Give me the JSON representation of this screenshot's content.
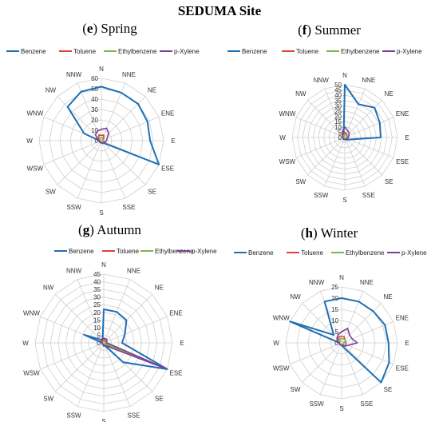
{
  "figure_title": "SEDUMA Site",
  "colors": {
    "benzene": "#1f6fb5",
    "toluene": "#e0413a",
    "ethylbenzene": "#7ab648",
    "p_xylene": "#7b3f99",
    "grid": "#cfcfcf",
    "axis_text": "#333333"
  },
  "chart_data": [
    {
      "type": "radar",
      "letter": "e",
      "season": "Spring",
      "directions": [
        "N",
        "NNE",
        "NE",
        "ENE",
        "E",
        "ESE",
        "SE",
        "SSE",
        "S",
        "SSW",
        "SW",
        "WSW",
        "W",
        "WNW",
        "NW",
        "NNW"
      ],
      "rticks": [
        "0",
        "10",
        "20",
        "30",
        "40",
        "50",
        "60"
      ],
      "rmax": 60,
      "legend_position": "top",
      "series": [
        {
          "name": "Benzene",
          "color": "#1f6fb5",
          "values": [
            52,
            50,
            50,
            48,
            47,
            60,
            3,
            2,
            2,
            2,
            2,
            2,
            2,
            18,
            46,
            51
          ]
        },
        {
          "name": "Toluene",
          "color": "#e0413a",
          "values": [
            5,
            6,
            3,
            2,
            2,
            3,
            2,
            2,
            2,
            2,
            1,
            1,
            1,
            2,
            4,
            6
          ]
        },
        {
          "name": "Ethylbenzene",
          "color": "#7ab648",
          "values": [
            3,
            3,
            2,
            2,
            2,
            2,
            2,
            1,
            1,
            1,
            1,
            1,
            1,
            2,
            3,
            3
          ]
        },
        {
          "name": "p-Xylene",
          "color": "#7b3f99",
          "values": [
            11,
            13,
            10,
            6,
            5,
            4,
            3,
            3,
            2,
            2,
            2,
            2,
            2,
            4,
            8,
            10
          ]
        }
      ]
    },
    {
      "type": "radar",
      "letter": "f",
      "season": "Summer",
      "directions": [
        "N",
        "NNE",
        "NE",
        "ENE",
        "E",
        "ESE",
        "SE",
        "SSE",
        "S",
        "SSW",
        "SW",
        "WSW",
        "W",
        "WNW",
        "NW",
        "NNW"
      ],
      "rticks": [
        "0",
        "5",
        "10",
        "15",
        "20",
        "25",
        "30",
        "35",
        "40",
        "45",
        "50"
      ],
      "rmax": 50,
      "legend_position": "top",
      "series": [
        {
          "name": "Benzene",
          "color": "#1f6fb5",
          "values": [
            50,
            34,
            40,
            36,
            34,
            5,
            3,
            2,
            2,
            2,
            2,
            2,
            2,
            2,
            3,
            3
          ]
        },
        {
          "name": "Toluene",
          "color": "#e0413a",
          "values": [
            5,
            4,
            3,
            2,
            2,
            2,
            2,
            2,
            2,
            1,
            1,
            1,
            1,
            1,
            2,
            3
          ]
        },
        {
          "name": "Ethylbenzene",
          "color": "#7ab648",
          "values": [
            3,
            3,
            2,
            2,
            2,
            2,
            1,
            1,
            1,
            1,
            1,
            1,
            1,
            1,
            2,
            2
          ]
        },
        {
          "name": "p-Xylene",
          "color": "#7b3f99",
          "values": [
            10,
            7,
            6,
            4,
            3,
            3,
            2,
            2,
            2,
            2,
            2,
            2,
            2,
            2,
            3,
            6
          ]
        }
      ]
    },
    {
      "type": "radar",
      "letter": "g",
      "season": "Autumn",
      "directions": [
        "N",
        "NNE",
        "NE",
        "ENE",
        "E",
        "ESE",
        "SE",
        "SSE",
        "S",
        "SSW",
        "SW",
        "WSW",
        "W",
        "WNW",
        "NW",
        "NNW"
      ],
      "rticks": [
        "0",
        "5",
        "10",
        "15",
        "20",
        "25",
        "30",
        "35",
        "40",
        "45"
      ],
      "rmax": 45,
      "legend_position": "top",
      "series": [
        {
          "name": "Benzene",
          "color": "#1f6fb5",
          "values": [
            22,
            22,
            21,
            15,
            12,
            45,
            18,
            2,
            2,
            1,
            1,
            1,
            1,
            14,
            3,
            2
          ]
        },
        {
          "name": "Toluene",
          "color": "#e0413a",
          "values": [
            2,
            2,
            2,
            2,
            2,
            43,
            2,
            1,
            1,
            1,
            1,
            1,
            1,
            1,
            1,
            2
          ]
        },
        {
          "name": "Ethylbenzene",
          "color": "#7ab648",
          "values": [
            1,
            1,
            1,
            1,
            1,
            40,
            1,
            1,
            1,
            1,
            1,
            1,
            1,
            1,
            1,
            1
          ]
        },
        {
          "name": "p-Xylene",
          "color": "#7b3f99",
          "values": [
            3,
            3,
            3,
            2,
            2,
            44,
            3,
            2,
            2,
            1,
            1,
            1,
            1,
            2,
            2,
            3
          ]
        }
      ]
    },
    {
      "type": "radar",
      "letter": "h",
      "season": "Winter",
      "directions": [
        "N",
        "NNE",
        "NE",
        "ENE",
        "E",
        "ESE",
        "SE",
        "SSE",
        "S",
        "SSW",
        "SW",
        "WSW",
        "W",
        "WNW",
        "NW",
        "NNW"
      ],
      "rticks": [
        "0",
        "5",
        "10",
        "15",
        "20",
        "25"
      ],
      "rmax": 25,
      "legend_position": "top",
      "series": [
        {
          "name": "Benzene",
          "color": "#1f6fb5",
          "values": [
            20,
            20,
            20,
            21,
            21,
            23,
            26,
            2,
            1,
            1,
            1,
            1,
            1,
            25,
            5,
            20
          ]
        },
        {
          "name": "Toluene",
          "color": "#e0413a",
          "values": [
            3,
            3,
            2,
            2,
            2,
            2,
            2,
            1,
            1,
            1,
            1,
            1,
            1,
            2,
            2,
            3
          ]
        },
        {
          "name": "Ethylbenzene",
          "color": "#7ab648",
          "values": [
            2,
            2,
            2,
            2,
            1,
            1,
            1,
            1,
            1,
            1,
            1,
            1,
            1,
            1,
            1,
            2
          ]
        },
        {
          "name": "p-Xylene",
          "color": "#7b3f99",
          "values": [
            5,
            7,
            5,
            5,
            7,
            3,
            2,
            1,
            1,
            1,
            1,
            1,
            1,
            2,
            3,
            4
          ]
        }
      ]
    }
  ]
}
